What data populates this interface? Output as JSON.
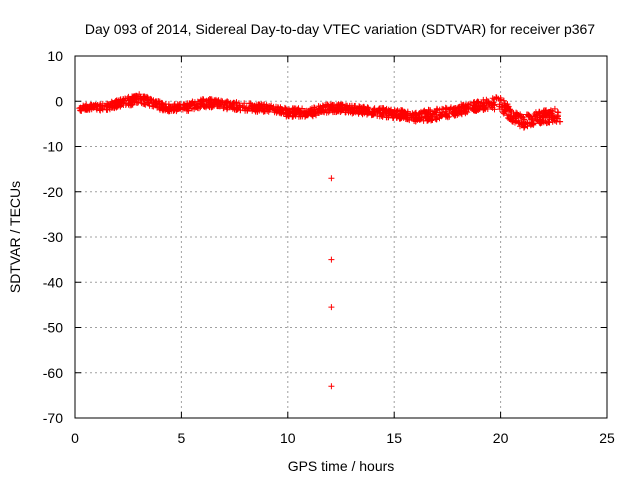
{
  "chart_data": {
    "type": "scatter",
    "title": "Day 093 of 2014, Sidereal Day-to-day VTEC variation (SDTVAR) for receiver p367",
    "xlabel": "GPS time / hours",
    "ylabel": "SDTVAR / TECUs",
    "xlim": [
      0,
      25
    ],
    "ylim": [
      -70,
      10
    ],
    "xticks": [
      0,
      5,
      10,
      15,
      20,
      25
    ],
    "yticks": [
      10,
      0,
      -10,
      -20,
      -30,
      -40,
      -50,
      -60,
      -70
    ],
    "grid": true,
    "marker": "+",
    "series_color": "#ff0000",
    "band": {
      "x": [
        0.2,
        0.5,
        1.0,
        1.5,
        2.0,
        2.5,
        3.0,
        3.5,
        4.0,
        4.5,
        5.0,
        5.5,
        6.0,
        6.5,
        7.0,
        7.5,
        8.0,
        8.5,
        9.0,
        9.5,
        10.0,
        10.5,
        11.0,
        11.5,
        12.0,
        12.5,
        13.0,
        13.5,
        14.0,
        14.5,
        15.0,
        15.5,
        16.0,
        16.5,
        17.0,
        17.5,
        18.0,
        18.5,
        19.0,
        19.5,
        19.8,
        20.0,
        20.3,
        20.6,
        21.0,
        21.5,
        22.0,
        22.5,
        22.8
      ],
      "center": [
        -1.5,
        -1.2,
        -1.5,
        -1.2,
        -0.5,
        0.0,
        0.5,
        0.0,
        -1.0,
        -1.5,
        -1.5,
        -1.0,
        -0.5,
        -0.5,
        -0.8,
        -1.0,
        -1.2,
        -1.5,
        -1.5,
        -2.0,
        -2.5,
        -2.5,
        -2.5,
        -2.0,
        -1.5,
        -1.5,
        -1.8,
        -2.0,
        -2.2,
        -2.5,
        -2.8,
        -3.0,
        -3.5,
        -3.2,
        -2.8,
        -2.5,
        -2.0,
        -1.5,
        -1.0,
        -0.5,
        -0.5,
        -0.5,
        -2.0,
        -3.5,
        -4.5,
        -4.0,
        -3.5,
        -3.0,
        -3.5
      ],
      "spread": [
        1.5,
        1.5,
        1.5,
        1.5,
        1.8,
        2.0,
        2.2,
        2.0,
        1.8,
        1.8,
        1.8,
        2.0,
        2.0,
        2.0,
        1.8,
        1.8,
        1.8,
        1.8,
        1.8,
        1.8,
        2.0,
        2.0,
        2.0,
        2.0,
        1.8,
        1.8,
        1.8,
        1.8,
        1.8,
        2.0,
        2.0,
        2.0,
        2.0,
        2.5,
        2.5,
        2.2,
        2.2,
        2.2,
        2.2,
        2.5,
        3.0,
        3.0,
        3.0,
        3.0,
        3.0,
        3.0,
        3.0,
        3.0,
        3.0
      ]
    },
    "outliers": [
      {
        "x": 12.05,
        "y": -17
      },
      {
        "x": 12.05,
        "y": -35
      },
      {
        "x": 12.05,
        "y": -45.5
      },
      {
        "x": 12.05,
        "y": -63
      }
    ]
  }
}
